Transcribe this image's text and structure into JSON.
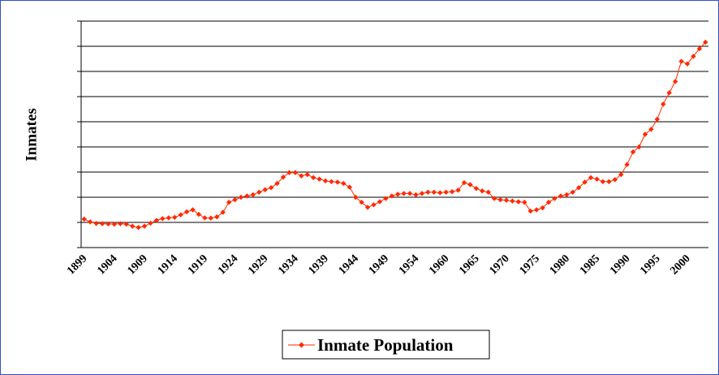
{
  "chart_data": {
    "type": "line",
    "y_label": "Inmates",
    "categories": [
      "1899",
      null,
      null,
      null,
      null,
      "1904",
      null,
      null,
      null,
      null,
      "1909",
      null,
      null,
      null,
      null,
      "1914",
      null,
      null,
      null,
      null,
      "1919",
      null,
      null,
      null,
      null,
      "1924",
      null,
      null,
      null,
      null,
      "1929",
      null,
      null,
      null,
      null,
      "1934",
      null,
      null,
      null,
      null,
      "1939",
      null,
      null,
      null,
      null,
      "1944",
      null,
      null,
      null,
      null,
      "1949",
      null,
      null,
      null,
      null,
      "1954",
      null,
      null,
      null,
      null,
      "1960",
      null,
      null,
      null,
      null,
      "1965",
      null,
      null,
      null,
      null,
      "1970",
      null,
      null,
      null,
      null,
      "1975",
      null,
      null,
      null,
      null,
      "1980",
      null,
      null,
      null,
      null,
      "1985",
      null,
      null,
      null,
      null,
      "1990",
      null,
      null,
      null,
      null,
      "1995",
      null,
      null,
      null,
      null,
      "2000",
      null,
      null,
      null
    ],
    "series": [
      {
        "name": "Inmate Population",
        "color": "#ff2a00",
        "values": [
          1.13,
          1.02,
          0.96,
          0.95,
          0.94,
          0.93,
          0.95,
          0.93,
          0.85,
          0.8,
          0.85,
          0.97,
          1.08,
          1.15,
          1.18,
          1.2,
          1.3,
          1.42,
          1.5,
          1.32,
          1.18,
          1.17,
          1.22,
          1.4,
          1.8,
          1.9,
          2.0,
          2.05,
          2.1,
          2.2,
          2.3,
          2.38,
          2.55,
          2.8,
          2.98,
          2.98,
          2.85,
          2.9,
          2.78,
          2.72,
          2.65,
          2.62,
          2.6,
          2.55,
          2.4,
          2.0,
          1.8,
          1.6,
          1.7,
          1.82,
          1.95,
          2.05,
          2.12,
          2.15,
          2.15,
          2.1,
          2.15,
          2.2,
          2.2,
          2.18,
          2.2,
          2.22,
          2.28,
          2.58,
          2.5,
          2.35,
          2.25,
          2.2,
          1.95,
          1.9,
          1.88,
          1.85,
          1.82,
          1.8,
          1.45,
          1.5,
          1.58,
          1.8,
          1.95,
          2.05,
          2.1,
          2.2,
          2.38,
          2.6,
          2.78,
          2.72,
          2.62,
          2.62,
          2.7,
          2.9,
          3.3,
          3.8,
          4.0,
          4.5,
          4.7,
          5.1,
          5.7,
          6.15,
          6.6,
          7.4,
          7.3,
          7.6,
          7.9,
          8.16
        ]
      }
    ],
    "ylim": [
      0,
      9
    ],
    "yticks": [
      0,
      1,
      2,
      3,
      4,
      5,
      6,
      7,
      8,
      9
    ],
    "grid": true,
    "legend": "bottom"
  }
}
